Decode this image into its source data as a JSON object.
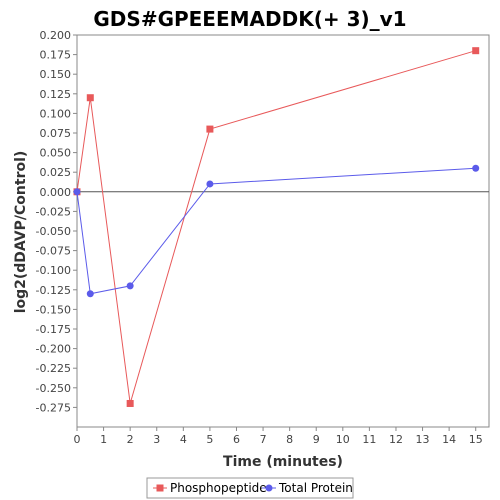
{
  "chart_data": {
    "type": "line",
    "title": "GDS#GPEEEMADDK(+ 3)_v1",
    "xlabel": "Time (minutes)",
    "ylabel": "log2(dDAVP/Control)",
    "xlim": [
      0,
      15.5
    ],
    "ylim": [
      -0.3,
      0.2
    ],
    "x_ticks": [
      0,
      1,
      2,
      3,
      4,
      5,
      6,
      7,
      8,
      9,
      10,
      11,
      12,
      13,
      14,
      15
    ],
    "y_ticks": [
      "0.200",
      "0.175",
      "0.150",
      "0.125",
      "0.100",
      "0.075",
      "0.050",
      "0.025",
      "0.000",
      "-0.025",
      "-0.050",
      "-0.075",
      "-0.100",
      "-0.125",
      "-0.150",
      "-0.175",
      "-0.200",
      "-0.225",
      "-0.250",
      "-0.275"
    ],
    "grid": false,
    "legend_position": "bottom",
    "series": [
      {
        "name": "Phosphopeptide",
        "color": "#e8595a",
        "marker": "square",
        "x": [
          0,
          0.5,
          2,
          5,
          15
        ],
        "y": [
          0.0,
          0.12,
          -0.27,
          0.08,
          0.18
        ]
      },
      {
        "name": "Total Protein",
        "color": "#5b5bea",
        "marker": "circle",
        "x": [
          0,
          0.5,
          2,
          5,
          15
        ],
        "y": [
          0.0,
          -0.13,
          -0.12,
          0.01,
          0.03
        ]
      }
    ]
  }
}
